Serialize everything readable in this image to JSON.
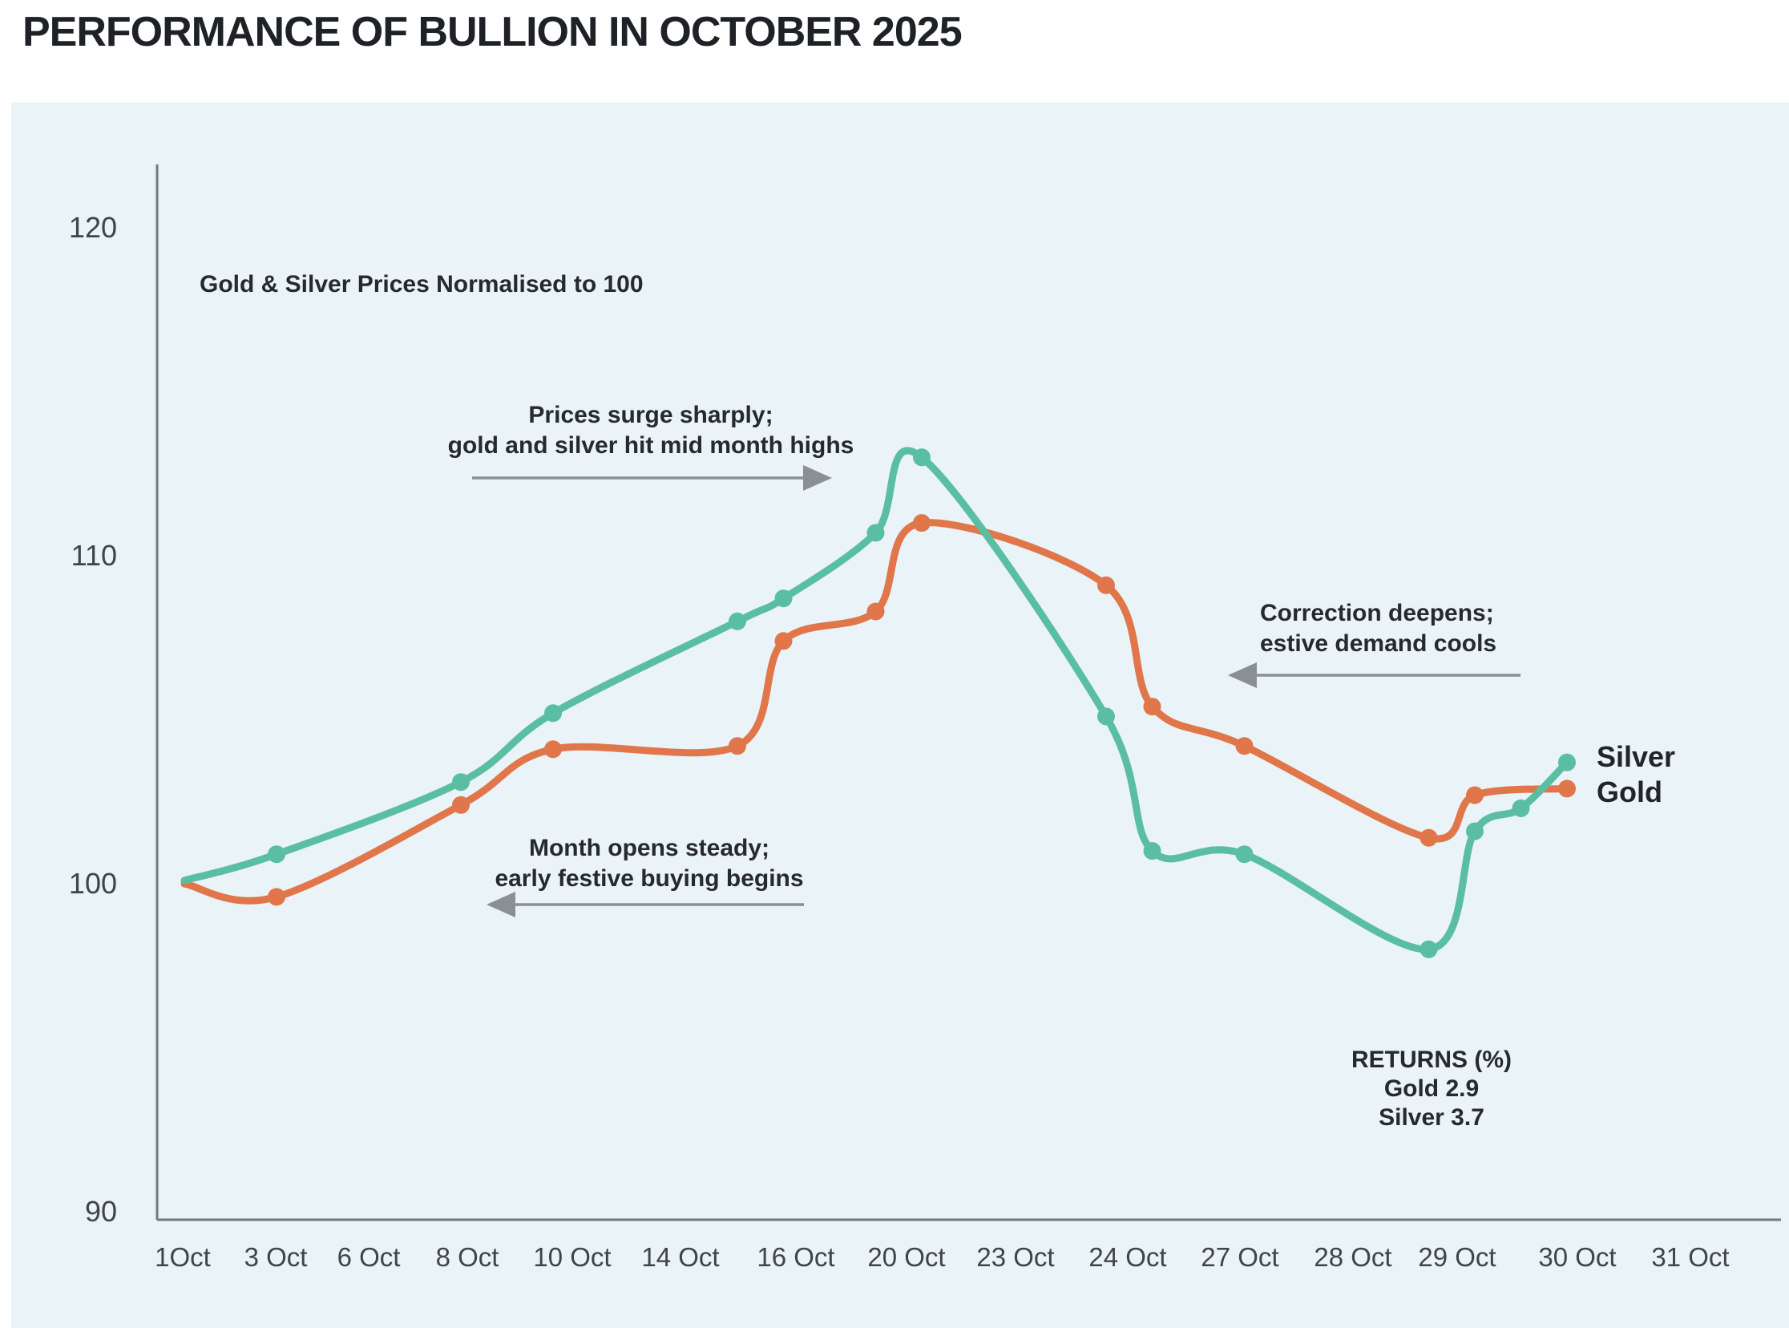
{
  "page_title": "PERFORMANCE OF BULLION IN OCTOBER 2025",
  "colors": {
    "panel_bg": "#e9f3f8",
    "silver": "#5abfa2",
    "gold": "#e0764a",
    "axis": "#74797e",
    "arrow": "#8a8f94",
    "text": "#26292d"
  },
  "chart_data": {
    "type": "line",
    "inner_title": "Gold & Silver Prices Normalised to 100",
    "x_unit": "day of October 2025",
    "x_tick_labels": [
      "1Oct",
      "3 Oct",
      "6 Oct",
      "8 Oct",
      "10 Oct",
      "14 Oct",
      "16 Oct",
      "20 Oct",
      "23 Oct",
      "24 Oct",
      "27 Oct",
      "28 Oct",
      "29 Oct",
      "30 Oct",
      "31 Oct"
    ],
    "y_ticks": [
      120,
      110,
      100,
      90
    ],
    "ylim": [
      89.5,
      121.5
    ],
    "x_days_lim": [
      1,
      31
    ],
    "grid": "off",
    "series": [
      {
        "name": "Gold",
        "color": "#e0764a",
        "points": [
          {
            "day": 1,
            "value": 100.0
          },
          {
            "day": 3,
            "value": 99.6
          },
          {
            "day": 7,
            "value": 102.4
          },
          {
            "day": 9,
            "value": 104.1
          },
          {
            "day": 13,
            "value": 104.2
          },
          {
            "day": 14,
            "value": 107.4
          },
          {
            "day": 16,
            "value": 108.3
          },
          {
            "day": 17,
            "value": 111.0
          },
          {
            "day": 21,
            "value": 109.1
          },
          {
            "day": 22,
            "value": 105.4
          },
          {
            "day": 24,
            "value": 104.2
          },
          {
            "day": 28,
            "value": 101.4
          },
          {
            "day": 29,
            "value": 102.7
          },
          {
            "day": 31,
            "value": 102.9
          }
        ]
      },
      {
        "name": "Silver",
        "color": "#5abfa2",
        "points": [
          {
            "day": 1,
            "value": 100.1
          },
          {
            "day": 3,
            "value": 100.9
          },
          {
            "day": 7,
            "value": 103.1
          },
          {
            "day": 9,
            "value": 105.2
          },
          {
            "day": 13,
            "value": 108.0
          },
          {
            "day": 14,
            "value": 108.7
          },
          {
            "day": 16,
            "value": 110.7
          },
          {
            "day": 17,
            "value": 113.0
          },
          {
            "day": 21,
            "value": 105.1
          },
          {
            "day": 22,
            "value": 101.0
          },
          {
            "day": 24,
            "value": 100.9
          },
          {
            "day": 28,
            "value": 98.0
          },
          {
            "day": 29,
            "value": 101.6
          },
          {
            "day": 30,
            "value": 102.3
          },
          {
            "day": 31,
            "value": 103.7
          }
        ]
      }
    ],
    "annotations": [
      {
        "id": "surge",
        "line1": "Prices surge sharply;",
        "line2": "gold and silver hit mid month highs",
        "arrow_dir": "right"
      },
      {
        "id": "open",
        "line1": "Month opens steady;",
        "line2": "early festive buying begins",
        "arrow_dir": "left"
      },
      {
        "id": "correction",
        "line1": "Correction deepens;",
        "line2": "estive demand cools",
        "arrow_dir": "left"
      }
    ],
    "returns_note": {
      "title": "RETURNS (%)",
      "gold_line": "Gold 2.9",
      "silver_line": "Silver 3.7"
    },
    "legend": {
      "silver_label": "Silver",
      "gold_label": "Gold",
      "position": "right-of-line-ends"
    }
  }
}
